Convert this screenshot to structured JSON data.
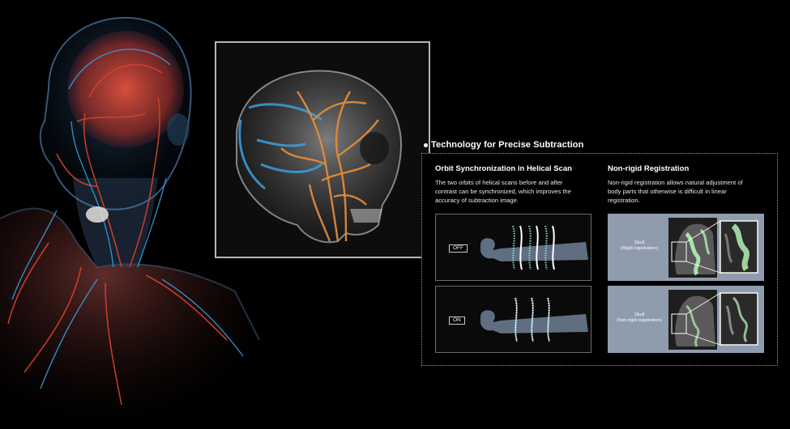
{
  "section": {
    "title": "Technology for Precise Subtraction"
  },
  "orbit": {
    "title": "Orbit Synchronization in Helical Scan",
    "text_lines": [
      "The two orbits of helical scans before and after",
      "contrast can be synchronized, which improves the",
      "accuracy of subtraction image."
    ],
    "off_label": "OFF",
    "on_label": "ON"
  },
  "nonrigid": {
    "title": "Non-rigid Registration",
    "text_lines": [
      "Non-rigid registration allows natural adjustment of",
      "body parts that otherwise is difficult in linear",
      "registration."
    ],
    "rigid_label_1": "Skull",
    "rigid_label_2": "(Rigid registration)",
    "nonrigid_label_1": "Skull",
    "nonrigid_label_2": "(Non-rigid registration)"
  },
  "colors": {
    "panel_bg": "#8f9cad",
    "body_silhouette": "#5f6e80",
    "helix_dotted": "#8fd8d8",
    "vessel_red": "#d8402a",
    "vessel_blue": "#3aa0e0",
    "ct_orange": "#e08a3c"
  }
}
